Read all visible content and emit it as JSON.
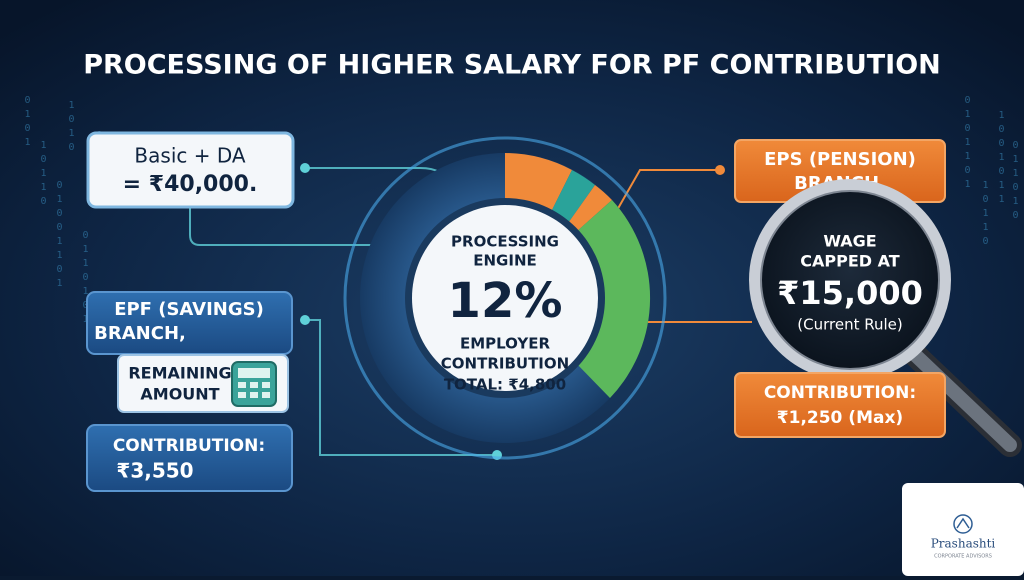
{
  "title": "PROCESSING OF HIGHER SALARY FOR PF CONTRIBUTION",
  "input": {
    "line1": "Basic + DA",
    "line2": "= ₹40,000."
  },
  "engine": {
    "line1": "PROCESSING",
    "line2": "ENGINE",
    "percent": "12%",
    "line3": "EMPLOYER",
    "line4": "CONTRIBUTION",
    "total": "TOTAL: ₹4,800"
  },
  "epf": {
    "branch_line1": "EPF (SAVINGS)",
    "branch_line2": "BRANCH,",
    "remaining_line1": "REMAINING",
    "remaining_line2": "AMOUNT",
    "contribution_label": "CONTRIBUTION:",
    "contribution_value": "₹3,550"
  },
  "eps": {
    "branch_line1": "EPS (PENSION)",
    "branch_line2": "BRANCH,",
    "wage_line1": "WAGE",
    "wage_line2": "CAPPED AT",
    "wage_value": "₹15,000",
    "wage_note": "(Current Rule)",
    "contribution_label": "CONTRIBUTION:",
    "contribution_value": "₹1,250 (Max)"
  },
  "binary_left": [
    "0101",
    "10110",
    "01001101",
    "1010",
    "0110101",
    "10011"
  ],
  "binary_right": [
    "0101101",
    "10110",
    "1001011",
    "011010"
  ],
  "logo": {
    "name": "Prashashti",
    "tagline": "CORPORATE ADVISORS"
  }
}
